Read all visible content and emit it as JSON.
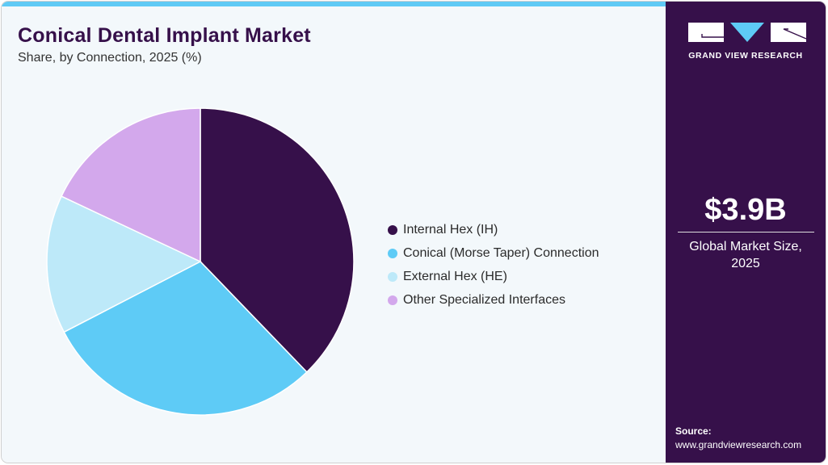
{
  "header": {
    "title": "Conical Dental Implant Market",
    "subtitle": "Share, by Connection, 2025 (%)"
  },
  "legend": [
    {
      "label": "Internal Hex (IH)",
      "color": "#36104a"
    },
    {
      "label": "Conical (Morse Taper) Connection",
      "color": "#5ecbf6"
    },
    {
      "label": "External Hex (HE)",
      "color": "#bde9f9"
    },
    {
      "label": "Other Specialized Interfaces",
      "color": "#d3a8ec"
    }
  ],
  "sidebar": {
    "brand": "GRAND VIEW RESEARCH",
    "market_size": "$3.9B",
    "market_caption_line1": "Global Market Size,",
    "market_caption_line2": "2025",
    "source_label": "Source:",
    "source_url": "www.grandviewresearch.com"
  },
  "colors": {
    "accent_bar": "#5fcaf5",
    "sidebar_bg": "#36104a",
    "background": "#f3f8fb"
  },
  "chart_data": {
    "type": "pie",
    "title": "Conical Dental Implant Market",
    "subtitle": "Share, by Connection, 2025 (%)",
    "categories": [
      "Internal Hex (IH)",
      "Conical (Morse Taper) Connection",
      "External Hex (HE)",
      "Other Specialized Interfaces"
    ],
    "values": [
      37.8,
      29.6,
      14.6,
      18.0
    ],
    "colors": [
      "#36104a",
      "#5ecbf6",
      "#bde9f9",
      "#d3a8ec"
    ],
    "start_angle_deg": 0,
    "direction": "clockwise",
    "legend_position": "right",
    "data_labels": false
  }
}
